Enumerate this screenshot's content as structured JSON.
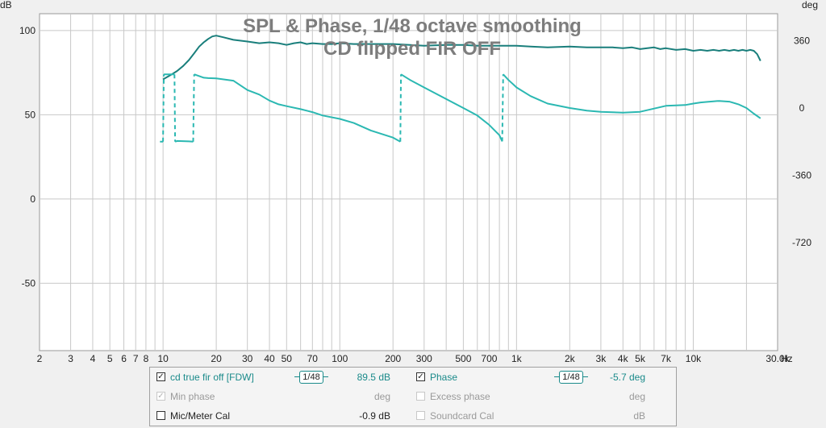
{
  "chart_data": {
    "type": "line",
    "title": "SPL & Phase, 1/48 octave smoothing",
    "subtitle": "CD flipped FIR OFF",
    "left_axis_unit": "dB",
    "right_axis_unit": "deg",
    "x_unit": "Hz",
    "x_scale": "log",
    "xlim": [
      2,
      30000
    ],
    "ylim": [
      -90,
      110
    ],
    "y2lim": [
      -1296,
      504
    ],
    "grid": true,
    "x_ticks": [
      {
        "value": 2,
        "label": "2"
      },
      {
        "value": 3,
        "label": "3"
      },
      {
        "value": 4,
        "label": "4"
      },
      {
        "value": 5,
        "label": "5"
      },
      {
        "value": 6,
        "label": "6"
      },
      {
        "value": 7,
        "label": "7"
      },
      {
        "value": 8,
        "label": "8"
      },
      {
        "value": 10,
        "label": "10"
      },
      {
        "value": 20,
        "label": "20"
      },
      {
        "value": 30,
        "label": "30"
      },
      {
        "value": 40,
        "label": "40"
      },
      {
        "value": 50,
        "label": "50"
      },
      {
        "value": 70,
        "label": "70"
      },
      {
        "value": 100,
        "label": "100"
      },
      {
        "value": 200,
        "label": "200"
      },
      {
        "value": 300,
        "label": "300"
      },
      {
        "value": 500,
        "label": "500"
      },
      {
        "value": 700,
        "label": "700"
      },
      {
        "value": 1000,
        "label": "1k"
      },
      {
        "value": 2000,
        "label": "2k"
      },
      {
        "value": 3000,
        "label": "3k"
      },
      {
        "value": 4000,
        "label": "4k"
      },
      {
        "value": 5000,
        "label": "5k"
      },
      {
        "value": 7000,
        "label": "7k"
      },
      {
        "value": 10000,
        "label": "10k"
      },
      {
        "value": 30000,
        "label": "30.0k"
      }
    ],
    "y_ticks": [
      {
        "value": 100,
        "label": "100"
      },
      {
        "value": 50,
        "label": "50"
      },
      {
        "value": 0,
        "label": "0"
      },
      {
        "value": -50,
        "label": "-50"
      }
    ],
    "y2_ticks": [
      {
        "value": 360,
        "label": "360"
      },
      {
        "value": 0,
        "label": "0"
      },
      {
        "value": -360,
        "label": "-360"
      },
      {
        "value": -720,
        "label": "-720"
      }
    ],
    "series": [
      {
        "name": "cd true fir off [FDW]",
        "axis": "left",
        "color": "#1a7f7c",
        "points": [
          [
            10,
            71
          ],
          [
            11,
            73.5
          ],
          [
            12,
            76
          ],
          [
            13,
            79
          ],
          [
            14,
            82.5
          ],
          [
            15,
            86.5
          ],
          [
            16,
            90.5
          ],
          [
            17,
            93
          ],
          [
            18,
            95
          ],
          [
            19,
            96.5
          ],
          [
            20,
            97
          ],
          [
            22,
            96
          ],
          [
            25,
            94.5
          ],
          [
            30,
            93.5
          ],
          [
            35,
            92.5
          ],
          [
            40,
            93
          ],
          [
            45,
            92.5
          ],
          [
            50,
            91.5
          ],
          [
            55,
            92.5
          ],
          [
            60,
            93
          ],
          [
            65,
            92
          ],
          [
            70,
            92.5
          ],
          [
            80,
            92
          ],
          [
            90,
            92
          ],
          [
            100,
            92.5
          ],
          [
            120,
            92
          ],
          [
            150,
            92
          ],
          [
            200,
            92
          ],
          [
            250,
            91.5
          ],
          [
            300,
            91
          ],
          [
            400,
            91.5
          ],
          [
            500,
            91.5
          ],
          [
            600,
            91
          ],
          [
            700,
            91
          ],
          [
            800,
            91
          ],
          [
            1000,
            91
          ],
          [
            1200,
            90.5
          ],
          [
            1500,
            90
          ],
          [
            2000,
            90.5
          ],
          [
            2500,
            90
          ],
          [
            3000,
            90
          ],
          [
            3500,
            90
          ],
          [
            4000,
            89.5
          ],
          [
            4500,
            90
          ],
          [
            5000,
            89
          ],
          [
            5500,
            89.5
          ],
          [
            6000,
            90
          ],
          [
            6500,
            89
          ],
          [
            7000,
            89.5
          ],
          [
            8000,
            88.5
          ],
          [
            9000,
            89
          ],
          [
            10000,
            88
          ],
          [
            11000,
            88.5
          ],
          [
            12000,
            88
          ],
          [
            13000,
            88.5
          ],
          [
            14000,
            88
          ],
          [
            15000,
            88.5
          ],
          [
            16000,
            88
          ],
          [
            17000,
            88.5
          ],
          [
            18000,
            88
          ],
          [
            19000,
            88.5
          ],
          [
            20000,
            88
          ],
          [
            21000,
            88.5
          ],
          [
            22000,
            88
          ],
          [
            23000,
            86
          ],
          [
            24000,
            82
          ]
        ]
      },
      {
        "name": "Phase",
        "axis": "right",
        "color": "#2bb8b2",
        "points": [
          [
            9.6,
            -180
          ],
          [
            10,
            -180
          ],
          [
            10.1,
            180
          ],
          [
            11.6,
            180
          ],
          [
            11.7,
            -180
          ],
          [
            12,
            -176
          ],
          [
            14,
            -178
          ],
          [
            14.8,
            -180
          ],
          [
            15,
            180
          ],
          [
            17,
            162
          ],
          [
            18,
            160
          ],
          [
            20,
            158
          ],
          [
            25,
            146
          ],
          [
            30,
            96
          ],
          [
            35,
            72
          ],
          [
            40,
            40
          ],
          [
            45,
            20
          ],
          [
            50,
            10
          ],
          [
            60,
            -6
          ],
          [
            70,
            -22
          ],
          [
            80,
            -40
          ],
          [
            100,
            -58
          ],
          [
            120,
            -80
          ],
          [
            150,
            -120
          ],
          [
            200,
            -158
          ],
          [
            220,
            -180
          ],
          [
            222,
            180
          ],
          [
            250,
            150
          ],
          [
            300,
            110
          ],
          [
            400,
            48
          ],
          [
            500,
            0
          ],
          [
            600,
            -40
          ],
          [
            700,
            -90
          ],
          [
            800,
            -145
          ],
          [
            830,
            -178
          ],
          [
            840,
            180
          ],
          [
            900,
            150
          ],
          [
            1000,
            110
          ],
          [
            1200,
            64
          ],
          [
            1500,
            24
          ],
          [
            2000,
            0
          ],
          [
            2500,
            -14
          ],
          [
            3000,
            -20
          ],
          [
            4000,
            -25
          ],
          [
            5000,
            -20
          ],
          [
            6000,
            -3
          ],
          [
            7000,
            12
          ],
          [
            8000,
            14
          ],
          [
            9000,
            16
          ],
          [
            10000,
            24
          ],
          [
            11000,
            30
          ],
          [
            12000,
            33
          ],
          [
            13000,
            36
          ],
          [
            14000,
            38
          ],
          [
            16000,
            34
          ],
          [
            18000,
            20
          ],
          [
            20000,
            0
          ],
          [
            22000,
            -30
          ],
          [
            24000,
            -55
          ]
        ]
      }
    ]
  },
  "legend": {
    "rows": [
      {
        "checked": true,
        "disabled": false,
        "label": "cd true fir off [FDW]",
        "smoothing": "1/48",
        "value": "89.5 dB"
      },
      {
        "checked": true,
        "disabled": true,
        "label": "Min phase",
        "value": "deg"
      },
      {
        "checked": false,
        "disabled": false,
        "label": "Mic/Meter Cal",
        "value": "-0.9 dB"
      }
    ],
    "rows_right": [
      {
        "checked": true,
        "disabled": false,
        "label": "Phase",
        "smoothing": "1/48",
        "value": "-5.7 deg"
      },
      {
        "checked": false,
        "disabled": true,
        "label": "Excess phase",
        "value": "deg"
      },
      {
        "checked": false,
        "disabled": true,
        "label": "Soundcard Cal",
        "value": "dB"
      }
    ],
    "check_mark": "✓"
  }
}
